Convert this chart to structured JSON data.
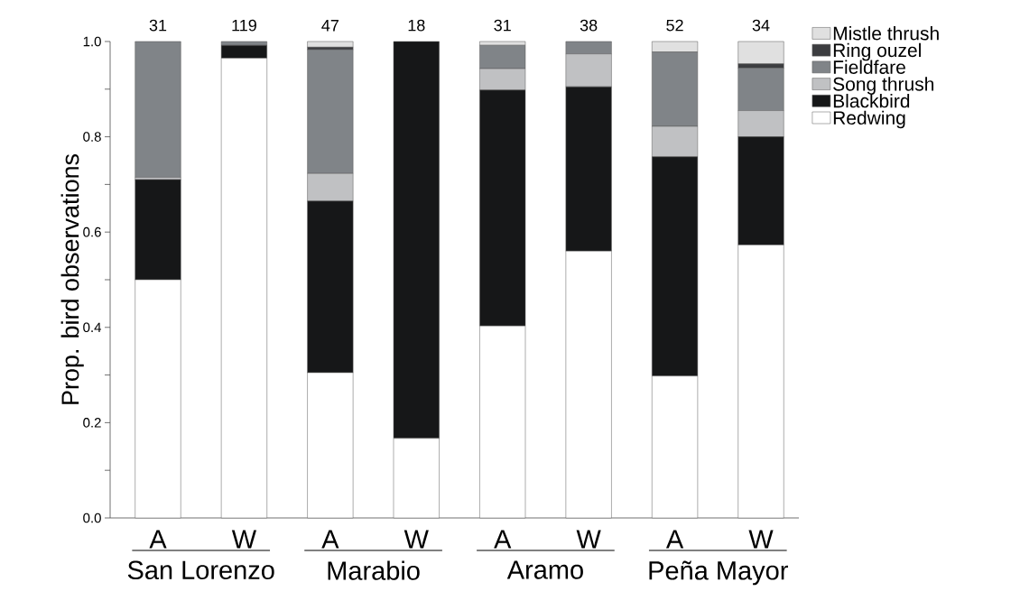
{
  "chart_data": {
    "type": "bar",
    "stacked": true,
    "categories": [
      "A",
      "W",
      "A",
      "W",
      "A",
      "W",
      "A",
      "W"
    ],
    "series": [
      {
        "name": "Redwing",
        "color": "#ffffff",
        "values": [
          0.5,
          0.965,
          0.305,
          0.167,
          0.403,
          0.56,
          0.298,
          0.573
        ]
      },
      {
        "name": "Blackbird",
        "color": "#161718",
        "values": [
          0.21,
          0.027,
          0.36,
          0.833,
          0.495,
          0.345,
          0.46,
          0.227
        ]
      },
      {
        "name": "Song thrush",
        "color": "#c0c1c3",
        "values": [
          0.005,
          0,
          0.058,
          0,
          0.045,
          0.069,
          0.064,
          0.055
        ]
      },
      {
        "name": "Fieldfare",
        "color": "#808488",
        "values": [
          0.285,
          0.008,
          0.26,
          0,
          0.049,
          0.026,
          0.156,
          0.089
        ]
      },
      {
        "name": "Ring ouzel",
        "color": "#3c3d40",
        "values": [
          0,
          0,
          0.005,
          0,
          0,
          0,
          0,
          0.009
        ]
      },
      {
        "name": "Mistle thrush",
        "color": "#e0e0e0",
        "values": [
          0,
          0,
          0.012,
          0,
          0.008,
          0,
          0.022,
          0.047
        ]
      }
    ],
    "ylabel": "Prop. bird observations",
    "annotations": [
      "31",
      "119",
      "47",
      "18",
      "31",
      "38",
      "52",
      "34",
      "San Lorenzo",
      "Marabio",
      "Aramo",
      "Peña Mayor"
    ],
    "ylim": [
      0,
      1
    ],
    "yticks": [
      {
        "value": 0,
        "label": "0.0"
      },
      {
        "value": 0.1,
        "label": null
      },
      {
        "value": 0.2,
        "label": "0.2"
      },
      {
        "value": 0.3,
        "label": null
      },
      {
        "value": 0.4,
        "label": "0.4"
      },
      {
        "value": 0.5,
        "label": null
      },
      {
        "value": 0.6,
        "label": "0.6"
      },
      {
        "value": 0.7,
        "label": null
      },
      {
        "value": 0.8,
        "label": "0.8"
      },
      {
        "value": 0.9,
        "label": null
      },
      {
        "value": 1,
        "label": "1.0"
      }
    ],
    "legend": "top right",
    "grid": false
  }
}
